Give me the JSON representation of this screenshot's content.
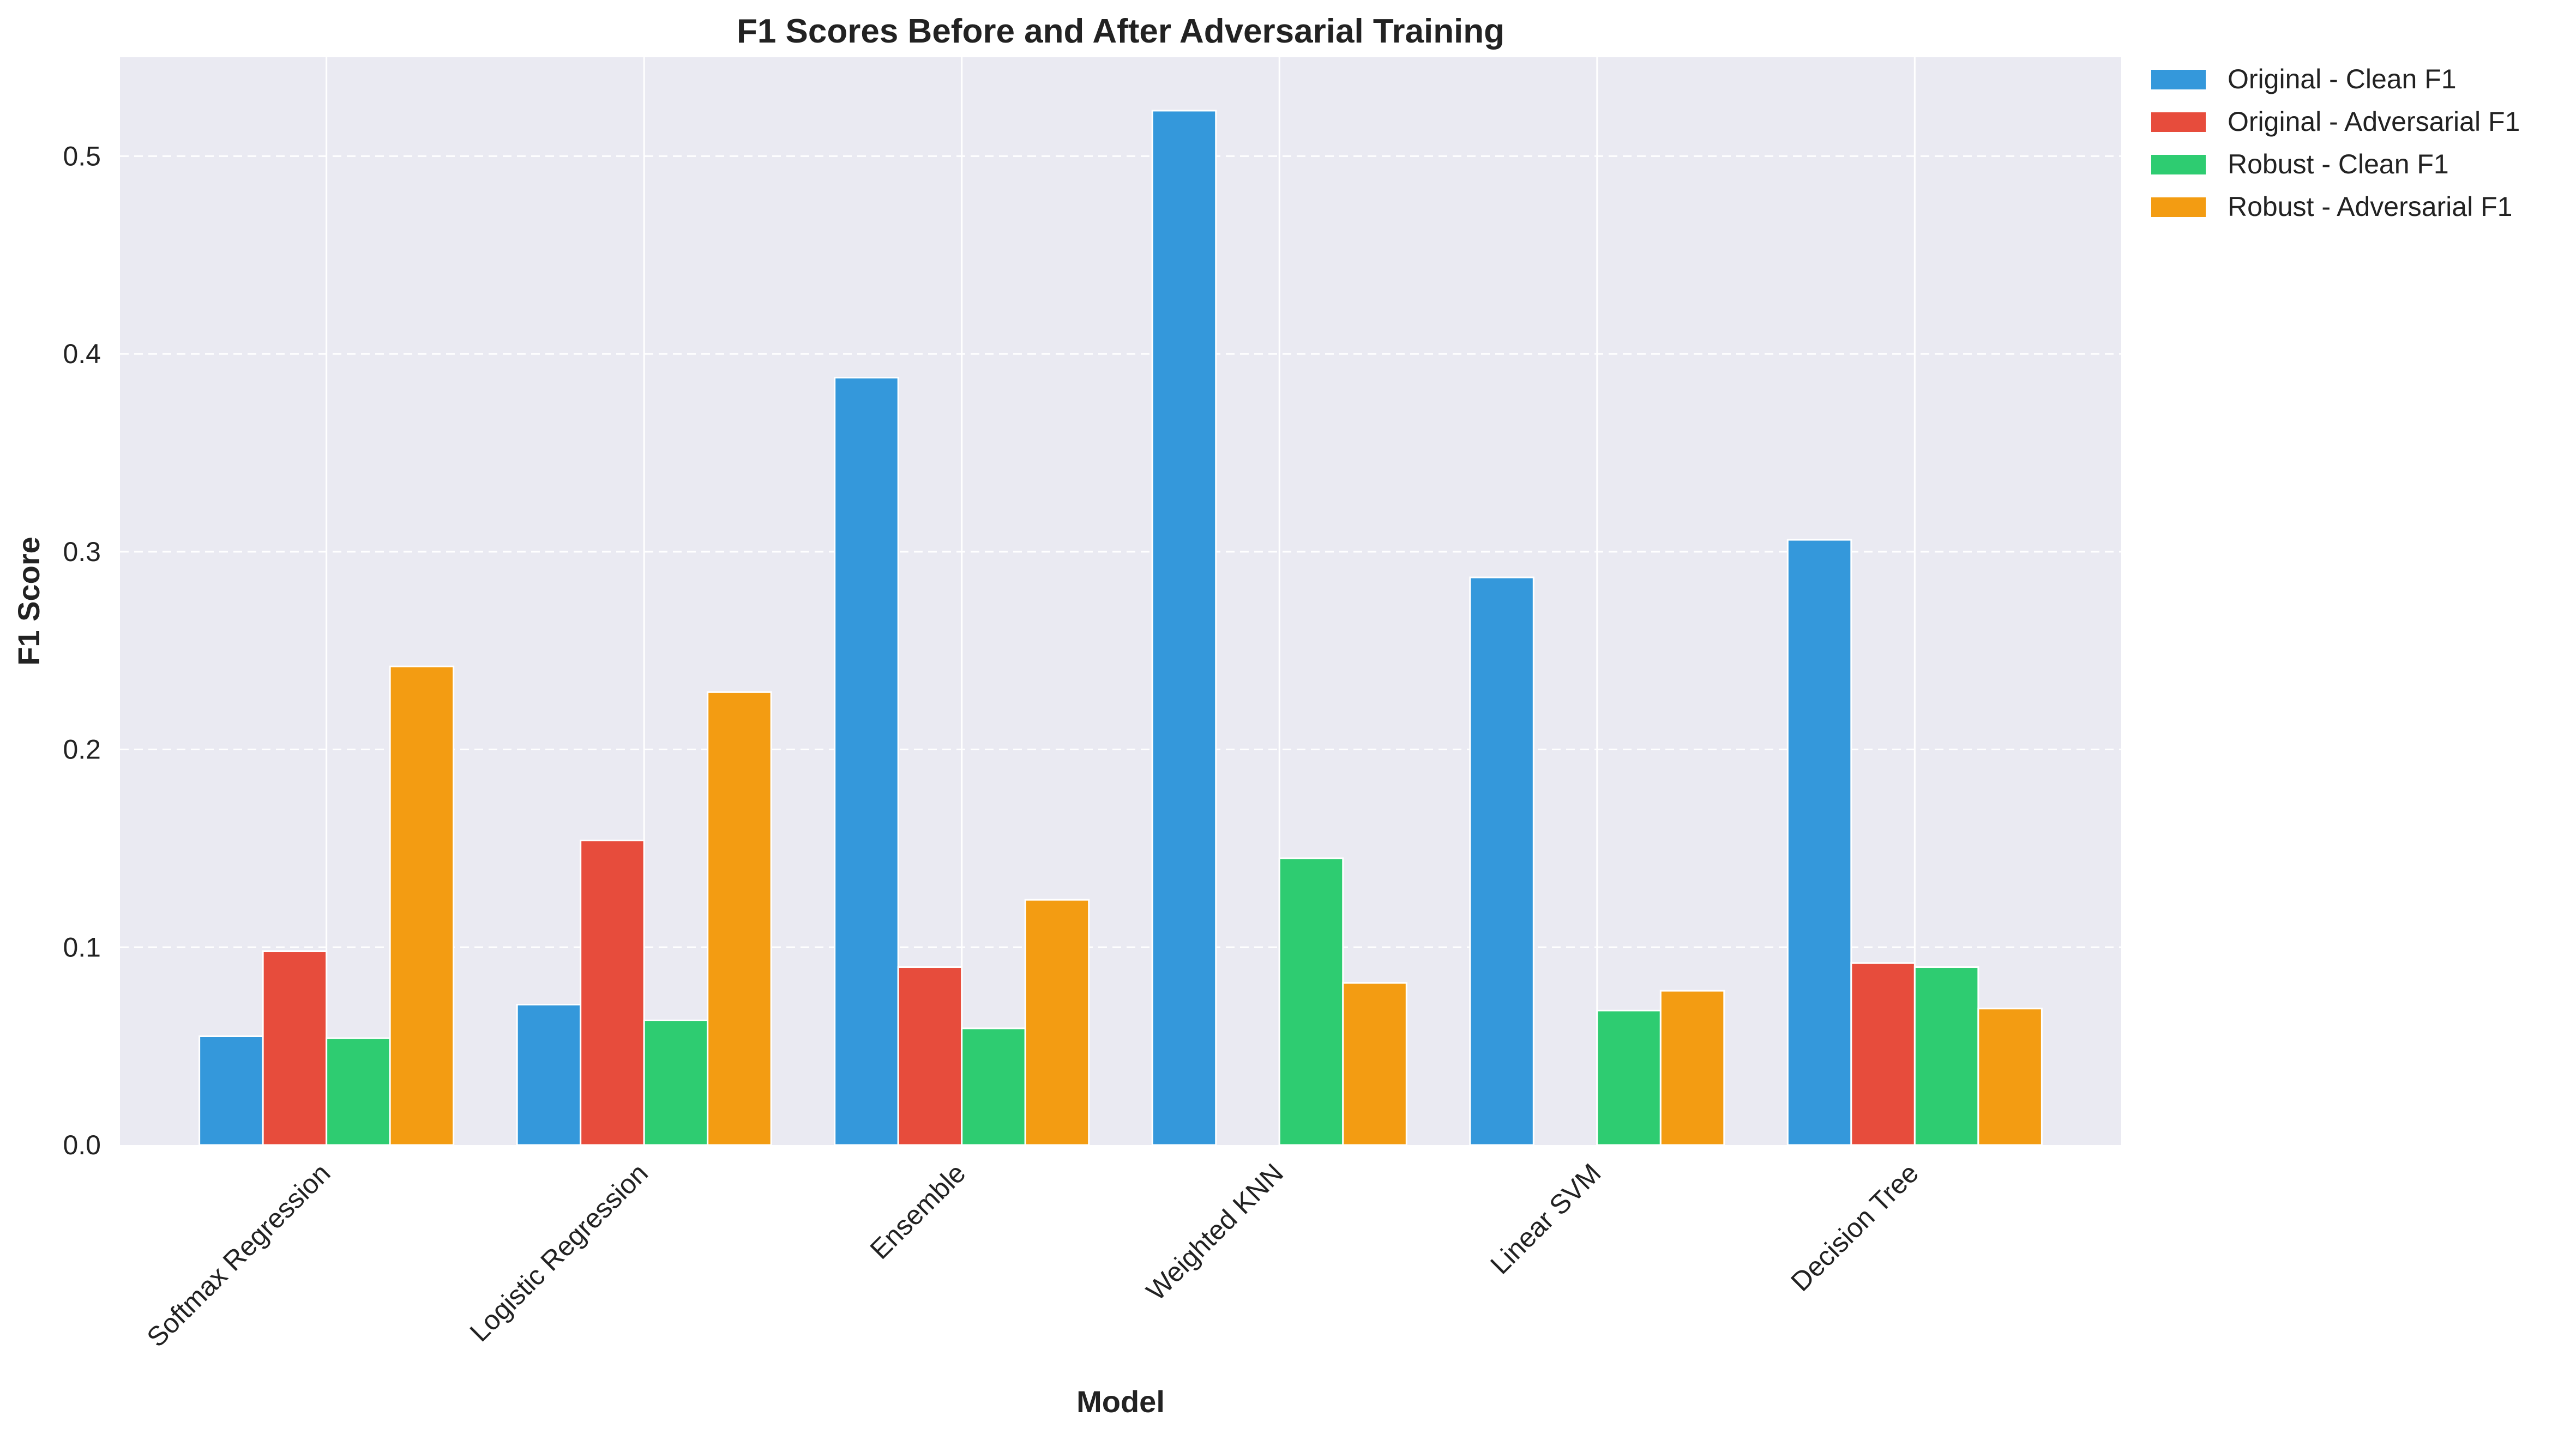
{
  "chart_data": {
    "type": "bar",
    "title": "F1 Scores Before and After Adversarial Training",
    "xlabel": "Model",
    "ylabel": "F1 Score",
    "categories": [
      "Softmax Regression",
      "Logistic Regression",
      "Ensemble",
      "Weighted KNN",
      "Linear SVM",
      "Decision Tree"
    ],
    "series": [
      {
        "name": "Original - Clean F1",
        "color": "#3498db",
        "values": [
          0.055,
          0.071,
          0.388,
          0.523,
          0.287,
          0.306
        ]
      },
      {
        "name": "Original - Adversarial F1",
        "color": "#e74c3c",
        "values": [
          0.098,
          0.154,
          0.09,
          0.0,
          0.0,
          0.092
        ]
      },
      {
        "name": "Robust - Clean F1",
        "color": "#2ecc71",
        "values": [
          0.054,
          0.063,
          0.059,
          0.145,
          0.068,
          0.09
        ]
      },
      {
        "name": "Robust - Adversarial F1",
        "color": "#f39c12",
        "values": [
          0.242,
          0.229,
          0.124,
          0.082,
          0.078,
          0.069
        ]
      }
    ],
    "yticks": [
      "0.0",
      "0.1",
      "0.2",
      "0.3",
      "0.4",
      "0.5"
    ],
    "ylim": [
      0,
      0.55
    ],
    "grid": true,
    "legend_position": "outside-top-right",
    "background_color": "#eaeaf2",
    "grid_color": "#ffffff"
  }
}
